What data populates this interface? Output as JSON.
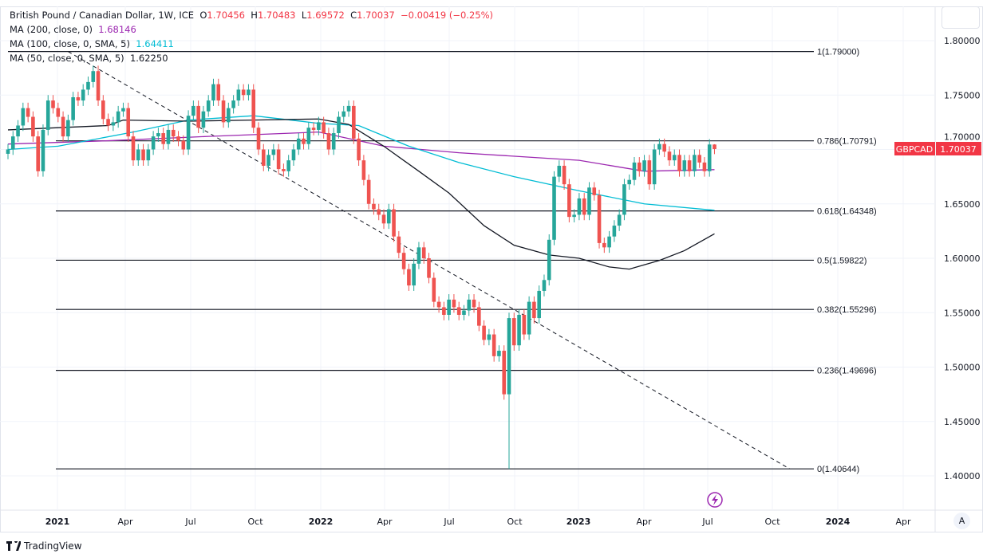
{
  "header": {
    "symbol_title": "British Pound / Canadian Dollar, 1W, ICE",
    "ohlc": {
      "o_label": "O",
      "o": "1.70456",
      "h_label": "H",
      "h": "1.70483",
      "l_label": "L",
      "l": "1.69572",
      "c_label": "C",
      "c": "1.70037",
      "change": "−0.00419 (−0.25%)"
    },
    "indicators": [
      {
        "label": "MA (200, close, 0)",
        "value": "1.68146",
        "color": "#9c27b0"
      },
      {
        "label": "MA (100, close, 0, SMA, 5)",
        "value": "1.64411",
        "color": "#00bcd4"
      },
      {
        "label": "MA (50, close, 0, SMA, 5)",
        "value": "1.62250",
        "color": "#131722"
      }
    ]
  },
  "price_tag": {
    "symbol": "GBPCAD",
    "value": "1.70037",
    "color": "#f23645"
  },
  "footer": {
    "brand": "TradingView",
    "auto_button": "A"
  },
  "chart_data": {
    "type": "candlestick",
    "interval": "1W",
    "first_week": "2020-10-26",
    "up_color": "#26a69a",
    "down_color": "#ef5350",
    "ylim": [
      1.37,
      1.81
    ],
    "y_ticks": [
      "1.40000",
      "1.45000",
      "1.50000",
      "1.55000",
      "1.60000",
      "1.65000",
      "1.70000",
      "1.75000",
      "1.80000"
    ],
    "x_ticks": [
      "2021",
      "Apr",
      "Jul",
      "Oct",
      "2022",
      "Apr",
      "Jul",
      "Oct",
      "2023",
      "Apr",
      "Jul",
      "Oct",
      "2024",
      "Apr"
    ],
    "close": [
      1.7,
      1.712,
      1.722,
      1.738,
      1.73,
      1.712,
      1.68,
      1.718,
      1.745,
      1.738,
      1.73,
      1.712,
      1.727,
      1.748,
      1.745,
      1.755,
      1.762,
      1.772,
      1.745,
      1.728,
      1.722,
      1.725,
      1.735,
      1.738,
      1.712,
      1.69,
      1.7,
      1.69,
      1.7,
      1.712,
      1.715,
      1.705,
      1.718,
      1.712,
      1.708,
      1.7,
      1.731,
      1.74,
      1.72,
      1.735,
      1.745,
      1.76,
      1.745,
      1.725,
      1.738,
      1.745,
      1.755,
      1.75,
      1.755,
      1.72,
      1.7,
      1.685,
      1.695,
      1.7,
      1.682,
      1.68,
      1.69,
      1.7,
      1.71,
      1.705,
      1.72,
      1.718,
      1.725,
      1.715,
      1.7,
      1.715,
      1.73,
      1.735,
      1.74,
      1.71,
      1.69,
      1.672,
      1.65,
      1.645,
      1.64,
      1.632,
      1.645,
      1.62,
      1.605,
      1.59,
      1.575,
      1.595,
      1.61,
      1.6,
      1.582,
      1.56,
      1.555,
      1.548,
      1.562,
      1.555,
      1.548,
      1.552,
      1.562,
      1.555,
      1.538,
      1.525,
      1.53,
      1.51,
      1.515,
      1.475,
      1.545,
      1.52,
      1.548,
      1.53,
      1.56,
      1.545,
      1.57,
      1.58,
      1.617,
      1.675,
      1.685,
      1.668,
      1.638,
      1.64,
      1.655,
      1.64,
      1.665,
      1.658,
      1.614,
      1.61,
      1.62,
      1.63,
      1.64,
      1.668,
      1.672,
      1.688,
      1.68,
      1.69,
      1.668,
      1.7,
      1.705,
      1.698,
      1.69,
      1.695,
      1.68,
      1.69,
      1.68,
      1.695,
      1.688,
      1.68,
      1.70456,
      1.70037
    ],
    "notable_lows": [
      {
        "week_index": 100,
        "low": 1.40644
      },
      {
        "week_index": 141,
        "low": 1.69572
      }
    ],
    "notable_highs": [
      {
        "week_index": 141,
        "high": 1.70483
      }
    ],
    "moving_averages": [
      {
        "name": "MA (200, close, 0)",
        "color": "#9c27b0",
        "points": [
          [
            0,
            1.705
          ],
          [
            20,
            1.708
          ],
          [
            40,
            1.712
          ],
          [
            62,
            1.716
          ],
          [
            75,
            1.703
          ],
          [
            90,
            1.697
          ],
          [
            114,
            1.69
          ],
          [
            127,
            1.68
          ],
          [
            141,
            1.68146
          ]
        ]
      },
      {
        "name": "MA (100, close, 0, SMA, 5)",
        "color": "#00bcd4",
        "points": [
          [
            0,
            1.7
          ],
          [
            10,
            1.703
          ],
          [
            25,
            1.716
          ],
          [
            36,
            1.727
          ],
          [
            49,
            1.731
          ],
          [
            62,
            1.724
          ],
          [
            70,
            1.722
          ],
          [
            80,
            1.703
          ],
          [
            90,
            1.688
          ],
          [
            101,
            1.675
          ],
          [
            114,
            1.662
          ],
          [
            127,
            1.65
          ],
          [
            141,
            1.64411
          ]
        ]
      },
      {
        "name": "MA (50, close, 0, SMA, 5)",
        "color": "#131722",
        "points": [
          [
            0,
            1.718
          ],
          [
            10,
            1.72
          ],
          [
            20,
            1.722
          ],
          [
            23,
            1.727
          ],
          [
            36,
            1.726
          ],
          [
            49,
            1.727
          ],
          [
            62,
            1.728
          ],
          [
            68,
            1.723
          ],
          [
            75,
            1.703
          ],
          [
            82,
            1.68
          ],
          [
            88,
            1.66
          ],
          [
            95,
            1.63
          ],
          [
            101,
            1.612
          ],
          [
            108,
            1.603
          ],
          [
            114,
            1.6
          ],
          [
            120,
            1.592
          ],
          [
            124,
            1.59
          ],
          [
            130,
            1.598
          ],
          [
            135,
            1.607
          ],
          [
            141,
            1.6225
          ]
        ]
      }
    ],
    "fibonacci": {
      "levels": [
        {
          "ratio": "1",
          "price": 1.79,
          "label": "1(1.79000)"
        },
        {
          "ratio": "0.786",
          "price": 1.70791,
          "label": "0.786(1.70791)"
        },
        {
          "ratio": "0.618",
          "price": 1.64348,
          "label": "0.618(1.64348)"
        },
        {
          "ratio": "0.5",
          "price": 1.59822,
          "label": "0.5(1.59822)"
        },
        {
          "ratio": "0.382",
          "price": 1.55296,
          "label": "0.382(1.55296)"
        },
        {
          "ratio": "0.236",
          "price": 1.49696,
          "label": "0.236(1.49696)"
        },
        {
          "ratio": "0",
          "price": 1.40644,
          "label": "0(1.40644)"
        }
      ],
      "trend_line": [
        [
          12,
          1.79
        ],
        [
          156,
          1.40644
        ]
      ]
    }
  }
}
